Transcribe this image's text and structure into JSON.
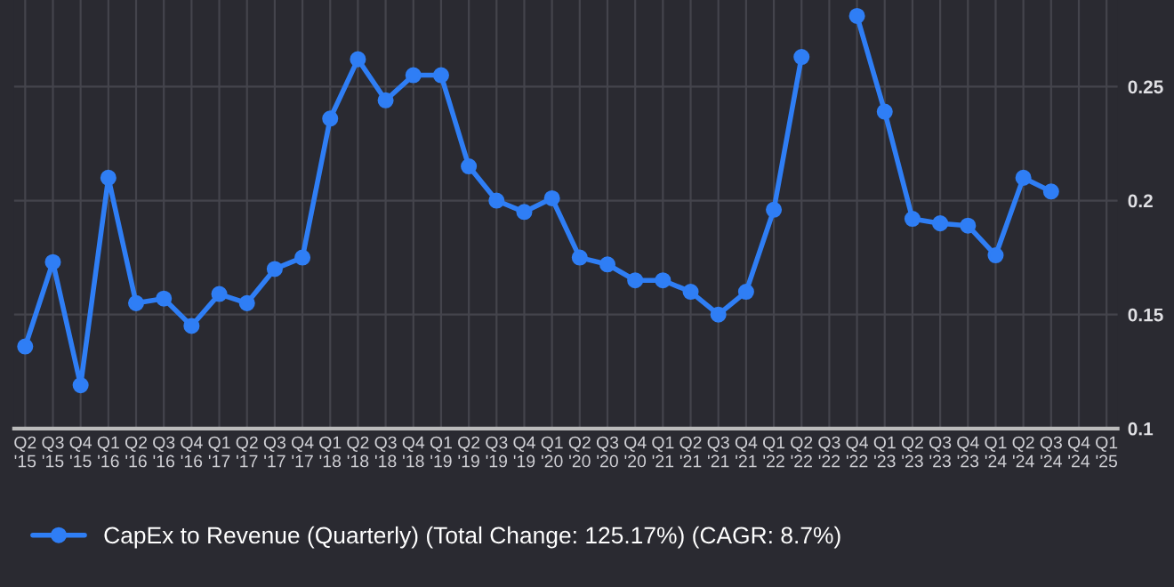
{
  "chart_data": {
    "type": "line",
    "categories": [
      "Q2\n'15",
      "Q3\n'15",
      "Q4\n'15",
      "Q1\n'16",
      "Q2\n'16",
      "Q3\n'16",
      "Q4\n'16",
      "Q1\n'17",
      "Q2\n'17",
      "Q3\n'17",
      "Q4\n'17",
      "Q1\n'18",
      "Q2\n'18",
      "Q3\n'18",
      "Q4\n'18",
      "Q1\n'19",
      "Q2\n'19",
      "Q3\n'19",
      "Q4\n'19",
      "Q1\n'20",
      "Q2\n'20",
      "Q3\n'20",
      "Q4\n'20",
      "Q1\n'21",
      "Q2\n'21",
      "Q3\n'21",
      "Q4\n'21",
      "Q1\n'22",
      "Q2\n'22",
      "Q3\n'22",
      "Q4\n'22",
      "Q1\n'23",
      "Q2\n'23",
      "Q3\n'23",
      "Q4\n'23",
      "Q1\n'24",
      "Q2\n'24",
      "Q3\n'24",
      "Q4\n'24",
      "Q1\n'25"
    ],
    "series": [
      {
        "name": "CapEx to Revenue (Quarterly) (Total Change: 125.17%) (CAGR: 8.7%)",
        "color": "#2f7ef5",
        "axis": "y2",
        "values": [
          0.136,
          0.173,
          0.119,
          0.21,
          0.155,
          0.157,
          0.145,
          0.159,
          0.155,
          0.17,
          0.175,
          0.236,
          0.262,
          0.244,
          0.255,
          0.255,
          0.215,
          0.2,
          0.195,
          0.201,
          0.175,
          0.172,
          0.165,
          0.165,
          0.16,
          0.15,
          0.16,
          0.196,
          0.263,
          null,
          0.281,
          0.239,
          0.192,
          0.19,
          0.189,
          0.176,
          0.21,
          0.204,
          null,
          null
        ]
      }
    ],
    "y2lim": [
      0.1,
      0.288
    ],
    "y2ticks": [
      0.1,
      0.15,
      0.2,
      0.25
    ],
    "grid": true,
    "legend": "bottom left",
    "marker": "circle",
    "line_style": "solid"
  }
}
